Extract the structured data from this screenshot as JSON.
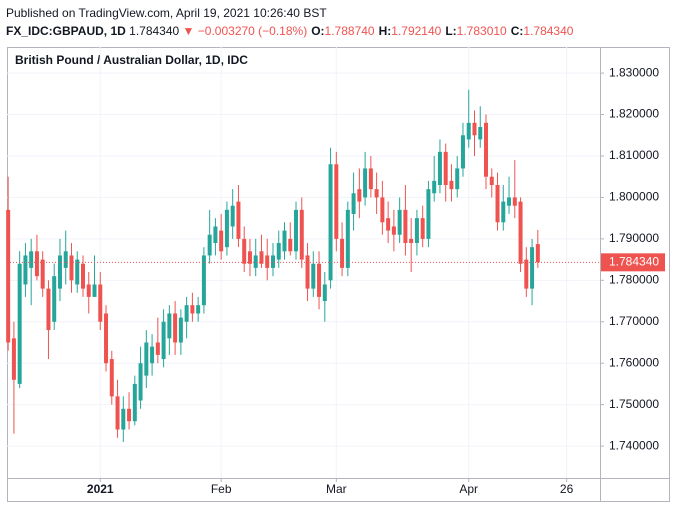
{
  "header": {
    "published": "Published on TradingView.com, April 19, 2021 10:26:40 BST",
    "symbol": "FX_IDC:GBPAUD, 1D",
    "price": "1.784340",
    "arrow": "▼",
    "change": "−0.003270 (−0.18%)",
    "ohlc": [
      {
        "label": "O:",
        "value": "1.788740"
      },
      {
        "label": "H:",
        "value": "1.792140"
      },
      {
        "label": "L:",
        "value": "1.783010"
      },
      {
        "label": "C:",
        "value": "1.784340"
      }
    ]
  },
  "chart_data": {
    "type": "candlestick",
    "title": "British Pound / Australian Dollar, 1D, IDC",
    "up_color": "#26a69a",
    "down_color": "#ef5350",
    "grid": true,
    "ylim": [
      1.7323,
      1.8363
    ],
    "yticks": [
      {
        "value": 1.74,
        "label": "1.740000"
      },
      {
        "value": 1.75,
        "label": "1.750000"
      },
      {
        "value": 1.76,
        "label": "1.760000"
      },
      {
        "value": 1.77,
        "label": "1.770000"
      },
      {
        "value": 1.78,
        "label": "1.780000"
      },
      {
        "value": 1.79,
        "label": "1.790000"
      },
      {
        "value": 1.8,
        "label": "1.800000"
      },
      {
        "value": 1.81,
        "label": "1.810000"
      },
      {
        "value": 1.82,
        "label": "1.820000"
      },
      {
        "value": 1.83,
        "label": "1.830000"
      }
    ],
    "xlim": [
      -0.2,
      102.8
    ],
    "xticks": [
      {
        "value": 16,
        "label": "2021"
      },
      {
        "value": 37,
        "label": "Feb"
      },
      {
        "value": 57,
        "label": "Mar"
      },
      {
        "value": 80,
        "label": "Apr"
      },
      {
        "value": 97,
        "label": "26"
      }
    ],
    "last_price": {
      "value": 1.78434,
      "label": "1.784340"
    },
    "open": [
      1.797,
      1.766,
      1.755,
      1.779,
      1.783,
      1.787,
      1.785,
      1.778,
      1.77,
      1.778,
      1.783,
      1.786,
      1.779,
      1.784,
      1.779,
      1.776,
      1.779,
      1.772,
      1.761,
      1.752,
      1.744,
      1.749,
      1.746,
      1.751,
      1.757,
      1.76,
      1.765,
      1.761,
      1.766,
      1.772,
      1.765,
      1.77,
      1.774,
      1.772,
      1.774,
      1.786,
      1.789,
      1.792,
      1.788,
      1.793,
      1.799,
      1.79,
      1.787,
      1.783,
      1.787,
      1.786,
      1.783,
      1.785,
      1.787,
      1.79,
      1.787,
      1.797,
      1.786,
      1.778,
      1.784,
      1.775,
      1.78,
      1.808,
      1.79,
      1.783,
      1.796,
      1.802,
      1.8,
      1.807,
      1.802,
      1.8,
      1.795,
      1.793,
      1.791,
      1.797,
      1.79,
      1.789,
      1.795,
      1.79,
      1.801,
      1.803,
      1.811,
      1.804,
      1.802,
      1.807,
      1.814,
      1.818,
      1.814,
      1.818,
      1.805,
      1.803,
      1.794,
      1.798,
      1.8,
      1.799,
      1.785,
      1.778,
      1.78874
    ],
    "high": [
      1.805,
      1.77,
      1.787,
      1.789,
      1.79,
      1.791,
      1.787,
      1.78,
      1.784,
      1.79,
      1.792,
      1.789,
      1.787,
      1.786,
      1.782,
      1.786,
      1.782,
      1.774,
      1.763,
      1.756,
      1.752,
      1.753,
      1.757,
      1.764,
      1.768,
      1.767,
      1.771,
      1.773,
      1.774,
      1.775,
      1.773,
      1.776,
      1.777,
      1.776,
      1.788,
      1.797,
      1.795,
      1.796,
      1.799,
      1.802,
      1.803,
      1.793,
      1.79,
      1.79,
      1.791,
      1.79,
      1.789,
      1.792,
      1.794,
      1.794,
      1.799,
      1.8,
      1.789,
      1.787,
      1.787,
      1.782,
      1.812,
      1.811,
      1.794,
      1.799,
      1.806,
      1.807,
      1.811,
      1.81,
      1.806,
      1.804,
      1.799,
      1.797,
      1.8,
      1.803,
      1.795,
      1.797,
      1.798,
      1.804,
      1.81,
      1.814,
      1.813,
      1.808,
      1.81,
      1.818,
      1.826,
      1.821,
      1.822,
      1.82,
      1.807,
      1.806,
      1.803,
      1.805,
      1.809,
      1.8,
      1.788,
      1.79,
      1.79214
    ],
    "low": [
      1.763,
      1.743,
      1.754,
      1.776,
      1.774,
      1.78,
      1.776,
      1.761,
      1.768,
      1.775,
      1.779,
      1.777,
      1.777,
      1.776,
      1.772,
      1.776,
      1.768,
      1.758,
      1.75,
      1.742,
      1.741,
      1.744,
      1.745,
      1.749,
      1.754,
      1.757,
      1.76,
      1.759,
      1.762,
      1.762,
      1.762,
      1.766,
      1.77,
      1.77,
      1.772,
      1.784,
      1.786,
      1.785,
      1.786,
      1.79,
      1.788,
      1.782,
      1.781,
      1.781,
      1.783,
      1.78,
      1.781,
      1.783,
      1.785,
      1.786,
      1.785,
      1.783,
      1.775,
      1.776,
      1.773,
      1.77,
      1.778,
      1.787,
      1.781,
      1.781,
      1.792,
      1.795,
      1.798,
      1.8,
      1.796,
      1.791,
      1.789,
      1.787,
      1.789,
      1.786,
      1.782,
      1.786,
      1.788,
      1.788,
      1.799,
      1.801,
      1.799,
      1.799,
      1.8,
      1.805,
      1.812,
      1.81,
      1.812,
      1.802,
      1.8,
      1.792,
      1.792,
      1.796,
      1.795,
      1.782,
      1.776,
      1.774,
      1.78301
    ],
    "close": [
      1.765,
      1.756,
      1.784,
      1.786,
      1.787,
      1.781,
      1.778,
      1.768,
      1.781,
      1.786,
      1.787,
      1.78,
      1.785,
      1.778,
      1.776,
      1.779,
      1.77,
      1.76,
      1.752,
      1.744,
      1.749,
      1.746,
      1.755,
      1.76,
      1.765,
      1.764,
      1.762,
      1.77,
      1.772,
      1.765,
      1.771,
      1.774,
      1.772,
      1.774,
      1.786,
      1.791,
      1.793,
      1.787,
      1.797,
      1.798,
      1.79,
      1.784,
      1.784,
      1.786,
      1.784,
      1.783,
      1.786,
      1.789,
      1.792,
      1.787,
      1.797,
      1.785,
      1.778,
      1.784,
      1.776,
      1.779,
      1.808,
      1.79,
      1.783,
      1.797,
      1.801,
      1.799,
      1.807,
      1.802,
      1.8,
      1.794,
      1.792,
      1.791,
      1.797,
      1.789,
      1.789,
      1.795,
      1.79,
      1.802,
      1.804,
      1.811,
      1.803,
      1.802,
      1.807,
      1.815,
      1.818,
      1.815,
      1.817,
      1.805,
      1.803,
      1.794,
      1.799,
      1.8,
      1.798,
      1.784,
      1.778,
      1.788,
      1.78434
    ]
  }
}
